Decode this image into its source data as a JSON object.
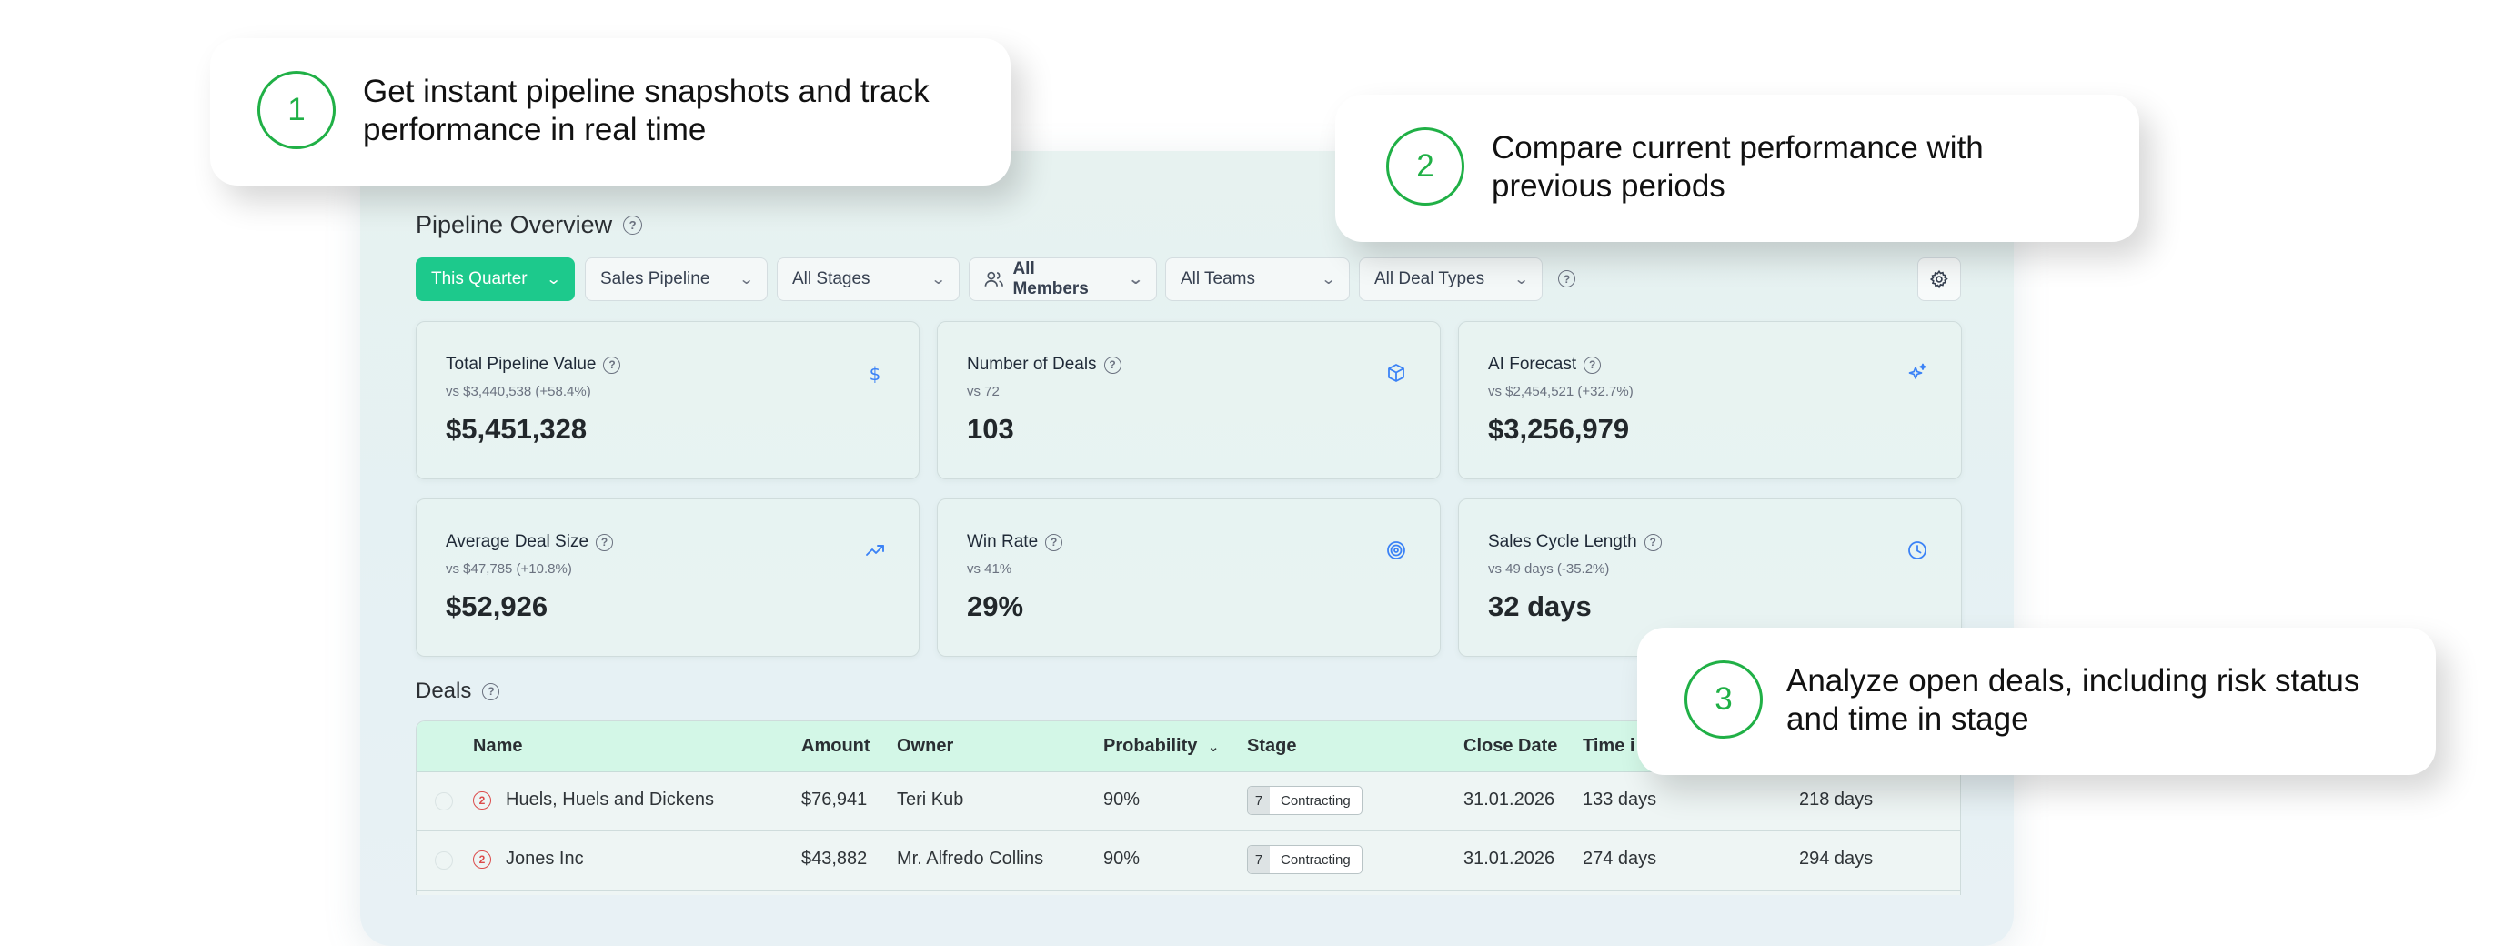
{
  "dashboard": {
    "title": "Pipeline Overview",
    "filters": {
      "period": "This Quarter",
      "pipeline": "Sales Pipeline",
      "stages": "All Stages",
      "members": "All Members",
      "teams": "All Teams",
      "deal_types": "All Deal Types"
    },
    "cards": [
      {
        "title": "Total Pipeline Value",
        "compare": "vs $3,440,538 (+58.4%)",
        "value": "$5,451,328",
        "icon": "dollar-icon"
      },
      {
        "title": "Number of Deals",
        "compare": "vs 72",
        "value": "103",
        "icon": "box-icon"
      },
      {
        "title": "AI Forecast",
        "compare": "vs $2,454,521 (+32.7%)",
        "value": "$3,256,979",
        "icon": "sparkles-icon"
      },
      {
        "title": "Average Deal Size",
        "compare": "vs $47,785 (+10.8%)",
        "value": "$52,926",
        "icon": "trend-up-icon"
      },
      {
        "title": "Win Rate",
        "compare": "vs 41%",
        "value": "29%",
        "icon": "target-icon"
      },
      {
        "title": "Sales Cycle Length",
        "compare": "vs 49 days (-35.2%)",
        "value": "32 days",
        "icon": "clock-icon"
      }
    ]
  },
  "deals": {
    "title": "Deals",
    "columns": {
      "name": "Name",
      "amount": "Amount",
      "owner": "Owner",
      "probability": "Probability",
      "stage": "Stage",
      "close_date": "Close Date",
      "time_in": "Time i"
    },
    "rows": [
      {
        "risk": "2",
        "name": "Huels, Huels and Dickens",
        "amount": "$76,941",
        "owner": "Teri Kub",
        "probability": "90%",
        "stage_num": "7",
        "stage": "Contracting",
        "close_date": "31.01.2026",
        "time_in_stage": "133 days",
        "age": "218 days"
      },
      {
        "risk": "2",
        "name": "Jones Inc",
        "amount": "$43,882",
        "owner": "Mr. Alfredo Collins",
        "probability": "90%",
        "stage_num": "7",
        "stage": "Contracting",
        "close_date": "31.01.2026",
        "time_in_stage": "274 days",
        "age": "294 days"
      }
    ]
  },
  "callouts": [
    {
      "number": "1",
      "line1": "Get instant pipeline snapshots and track",
      "line2": "performance in real time"
    },
    {
      "number": "2",
      "line1": "Compare current performance with",
      "line2": "previous periods"
    },
    {
      "number": "3",
      "line1": "Analyze open deals, including risk status",
      "line2": "and time in stage"
    }
  ],
  "colors": {
    "accent": "#1dc98c",
    "callout_green": "#20b046",
    "icon_blue": "#3b82f6",
    "risk_red": "#dc4a4a"
  }
}
